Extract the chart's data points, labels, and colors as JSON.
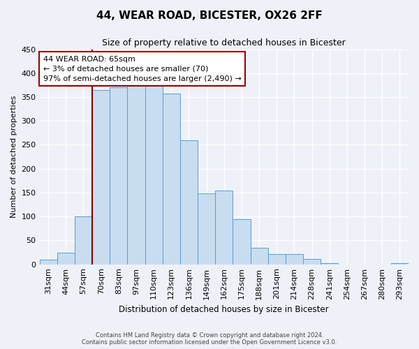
{
  "title": "44, WEAR ROAD, BICESTER, OX26 2FF",
  "subtitle": "Size of property relative to detached houses in Bicester",
  "xlabel": "Distribution of detached houses by size in Bicester",
  "ylabel": "Number of detached properties",
  "categories": [
    "31sqm",
    "44sqm",
    "57sqm",
    "70sqm",
    "83sqm",
    "97sqm",
    "110sqm",
    "123sqm",
    "136sqm",
    "149sqm",
    "162sqm",
    "175sqm",
    "188sqm",
    "201sqm",
    "214sqm",
    "228sqm",
    "241sqm",
    "254sqm",
    "267sqm",
    "280sqm",
    "293sqm"
  ],
  "values": [
    10,
    25,
    100,
    365,
    370,
    373,
    373,
    357,
    260,
    148,
    155,
    95,
    35,
    22,
    22,
    11,
    2,
    0,
    0,
    0,
    2
  ],
  "bar_color": "#c8ddf0",
  "bar_edge_color": "#5b9bd5",
  "highlight_line_color": "#8b0000",
  "annotation_line1": "44 WEAR ROAD: 65sqm",
  "annotation_line2": "← 3% of detached houses are smaller (70)",
  "annotation_line3": "97% of semi-detached houses are larger (2,490) →",
  "annotation_box_color": "#ffffff",
  "annotation_box_edge_color": "#a00000",
  "ylim": [
    0,
    450
  ],
  "yticks": [
    0,
    50,
    100,
    150,
    200,
    250,
    300,
    350,
    400,
    450
  ],
  "footer_line1": "Contains HM Land Registry data © Crown copyright and database right 2024.",
  "footer_line2": "Contains public sector information licensed under the Open Government Licence v3.0.",
  "background_color": "#eef2f8"
}
